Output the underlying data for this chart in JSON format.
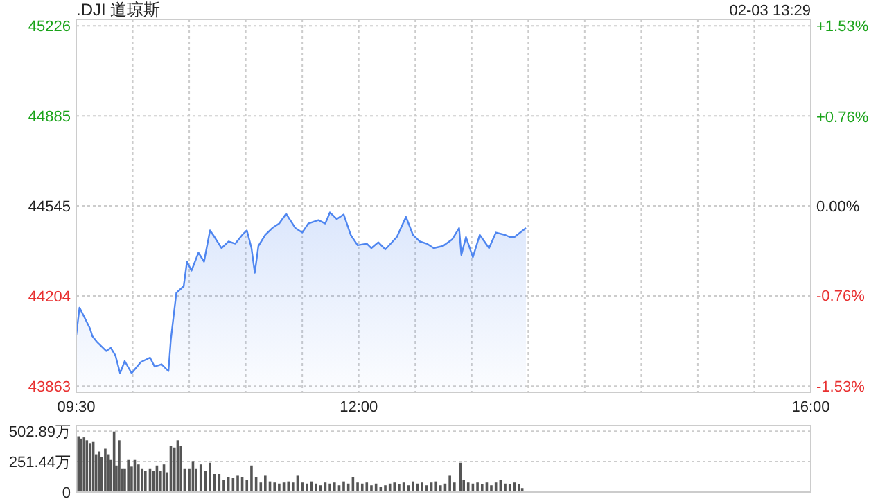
{
  "chart_data": [
    {
      "type": "area",
      "title": ".DJI 道琼斯",
      "annotations": [
        "02-03 13:29"
      ],
      "xlim": [
        9.5,
        16
      ],
      "xticks": [
        {
          "value": 9.5,
          "label": "09:30"
        },
        {
          "value": 10,
          "label": null
        },
        {
          "value": 10.5,
          "label": null
        },
        {
          "value": 11,
          "label": null
        },
        {
          "value": 11.5,
          "label": null
        },
        {
          "value": 12,
          "label": "12:00"
        },
        {
          "value": 12.5,
          "label": null
        },
        {
          "value": 13,
          "label": null
        },
        {
          "value": 13.5,
          "label": null
        },
        {
          "value": 14,
          "label": null
        },
        {
          "value": 14.5,
          "label": null
        },
        {
          "value": 15,
          "label": null
        },
        {
          "value": 15.5,
          "label": null
        },
        {
          "value": 16,
          "label": "16:00"
        }
      ],
      "ylim": [
        43840,
        45250
      ],
      "yticks": [
        43863,
        44204,
        44545,
        44885,
        45226
      ],
      "y2lim": [
        -1.583,
        1.583
      ],
      "y2ticks": [
        {
          "value": -1.53,
          "label": "-1.53%"
        },
        {
          "value": -0.76,
          "label": "-0.76%"
        },
        {
          "value": 0,
          "label": "0.00%"
        },
        {
          "value": 0.76,
          "label": "+0.76%"
        },
        {
          "value": 1.53,
          "label": "+1.53%"
        }
      ],
      "grid": true,
      "series": [
        {
          "color": "#4f86f0",
          "x": [
            9.5,
            9.529,
            9.582,
            9.622,
            9.643,
            9.684,
            9.765,
            9.806,
            9.847,
            9.888,
            9.929,
            9.99,
            10.071,
            10.153,
            10.194,
            10.255,
            10.316,
            10.337,
            10.386,
            10.451,
            10.48,
            10.52,
            10.582,
            10.631,
            10.684,
            10.724,
            10.786,
            10.847,
            10.908,
            10.969,
            11.01,
            11.051,
            11.08,
            11.112,
            11.173,
            11.235,
            11.296,
            11.357,
            11.439,
            11.5,
            11.553,
            11.643,
            11.704,
            11.745,
            11.806,
            11.867,
            11.929,
            11.99,
            12.071,
            12.112,
            12.173,
            12.235,
            12.337,
            12.418,
            12.48,
            12.541,
            12.602,
            12.663,
            12.745,
            12.827,
            12.888,
            12.908,
            12.949,
            13.01,
            13.071,
            13.153,
            13.214,
            13.296,
            13.337,
            13.378,
            13.48
          ],
          "values": [
            44055,
            44160,
            44115,
            44081,
            44052,
            44030,
            43996,
            44008,
            43979,
            43912,
            43958,
            43912,
            43954,
            43971,
            43937,
            43946,
            43920,
            44039,
            44216,
            44241,
            44334,
            44300,
            44368,
            44334,
            44452,
            44427,
            44385,
            44410,
            44402,
            44435,
            44452,
            44385,
            44292,
            44393,
            44435,
            44461,
            44478,
            44515,
            44461,
            44444,
            44478,
            44491,
            44478,
            44520,
            44495,
            44512,
            44435,
            44396,
            44402,
            44385,
            44407,
            44380,
            44427,
            44503,
            44435,
            44410,
            44402,
            44385,
            44393,
            44418,
            44461,
            44359,
            44427,
            44351,
            44435,
            44385,
            44444,
            44435,
            44427,
            44427,
            44461
          ]
        }
      ]
    },
    {
      "type": "bar",
      "xlim": [
        9.5,
        16
      ],
      "ylim": [
        0,
        550
      ],
      "yticks": [
        0,
        {
          "value": 251.44,
          "label": "251.44万"
        },
        {
          "value": 502.89,
          "label": "502.89万"
        }
      ],
      "grid": "y",
      "tick_labels": "y",
      "series": [
        {
          "color": "#555555",
          "x": [
            9.52,
            9.541,
            9.569,
            9.594,
            9.622,
            9.651,
            9.676,
            9.704,
            9.724,
            9.757,
            9.786,
            9.806,
            9.835,
            9.855,
            9.88,
            9.908,
            9.929,
            9.961,
            9.99,
            10.018,
            10.051,
            10.084,
            10.112,
            10.153,
            10.182,
            10.214,
            10.247,
            10.276,
            10.304,
            10.337,
            10.369,
            10.398,
            10.427,
            10.459,
            10.5,
            10.533,
            10.561,
            10.602,
            10.643,
            10.684,
            10.724,
            10.765,
            10.806,
            10.847,
            10.888,
            10.929,
            10.969,
            11.01,
            11.051,
            11.092,
            11.133,
            11.173,
            11.214,
            11.255,
            11.296,
            11.337,
            11.378,
            11.418,
            11.459,
            11.5,
            11.541,
            11.582,
            11.622,
            11.663,
            11.704,
            11.745,
            11.786,
            11.827,
            11.867,
            11.908,
            11.949,
            11.99,
            12.031,
            12.071,
            12.112,
            12.153,
            12.194,
            12.235,
            12.276,
            12.316,
            12.357,
            12.398,
            12.439,
            12.48,
            12.52,
            12.561,
            12.602,
            12.643,
            12.684,
            12.724,
            12.765,
            12.806,
            12.847,
            12.9,
            12.929,
            12.969,
            13.01,
            13.051,
            13.092,
            13.133,
            13.173,
            13.214,
            13.255,
            13.296,
            13.337,
            13.378,
            13.418,
            13.447
          ],
          "values": [
            461,
            442,
            452,
            428,
            405,
            414,
            312,
            335,
            289,
            358,
            312,
            265,
            500,
            219,
            428,
            196,
            196,
            265,
            210,
            265,
            228,
            196,
            172,
            196,
            172,
            219,
            172,
            228,
            163,
            382,
            368,
            428,
            382,
            196,
            196,
            256,
            196,
            228,
            172,
            242,
            149,
            149,
            102,
            126,
            116,
            135,
            126,
            102,
            219,
            126,
            79,
            135,
            88,
            79,
            70,
            79,
            88,
            79,
            135,
            79,
            70,
            88,
            70,
            56,
            79,
            70,
            79,
            56,
            88,
            70,
            126,
            79,
            70,
            79,
            56,
            70,
            42,
            56,
            70,
            79,
            65,
            79,
            56,
            88,
            70,
            79,
            56,
            79,
            88,
            56,
            70,
            135,
            79,
            242,
            102,
            79,
            70,
            79,
            65,
            79,
            56,
            79,
            102,
            70,
            65,
            79,
            65,
            33
          ]
        }
      ]
    }
  ]
}
